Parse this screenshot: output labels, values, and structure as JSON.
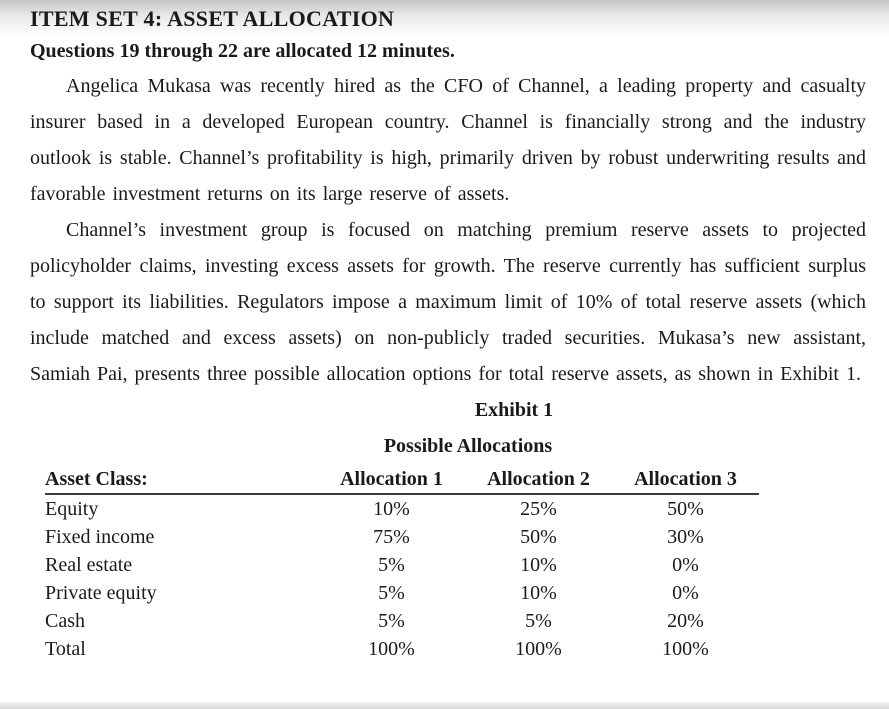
{
  "page": {
    "title": "ITEM SET 4: ASSET ALLOCATION",
    "instruction": "Questions 19 through 22 are allocated 12 minutes.",
    "paragraphs": [
      "Angelica Mukasa was recently hired as the CFO of Channel, a leading property and casualty insurer based in a developed European country. Channel is financially strong and the industry outlook is stable. Channel’s profitability is high, primarily driven by robust underwriting results and favorable investment returns on its large reserve of assets.",
      "Channel’s investment group is focused on matching premium reserve assets to projected policyholder claims, investing excess assets for growth. The reserve currently has sufficient surplus to support its liabilities. Regulators impose a maximum limit of 10% of total reserve assets (which include matched and excess assets) on non-publicly traded securities. Mukasa’s new assistant, Samiah Pai, presents three possible allocation options for total reserve assets, as shown in Exhibit 1."
    ]
  },
  "exhibit": {
    "title": "Exhibit 1",
    "subtitle": "Possible Allocations",
    "table": {
      "header": [
        "Asset Class:",
        "Allocation 1",
        "Allocation 2",
        "Allocation 3"
      ],
      "rows": [
        [
          "Equity",
          "10%",
          "25%",
          "50%"
        ],
        [
          "Fixed income",
          "75%",
          "50%",
          "30%"
        ],
        [
          "Real estate",
          "5%",
          "10%",
          "0%"
        ],
        [
          "Private equity",
          "5%",
          "10%",
          "0%"
        ],
        [
          "Cash",
          "5%",
          "5%",
          "20%"
        ],
        [
          "Total",
          "100%",
          "100%",
          "100%"
        ]
      ]
    }
  }
}
